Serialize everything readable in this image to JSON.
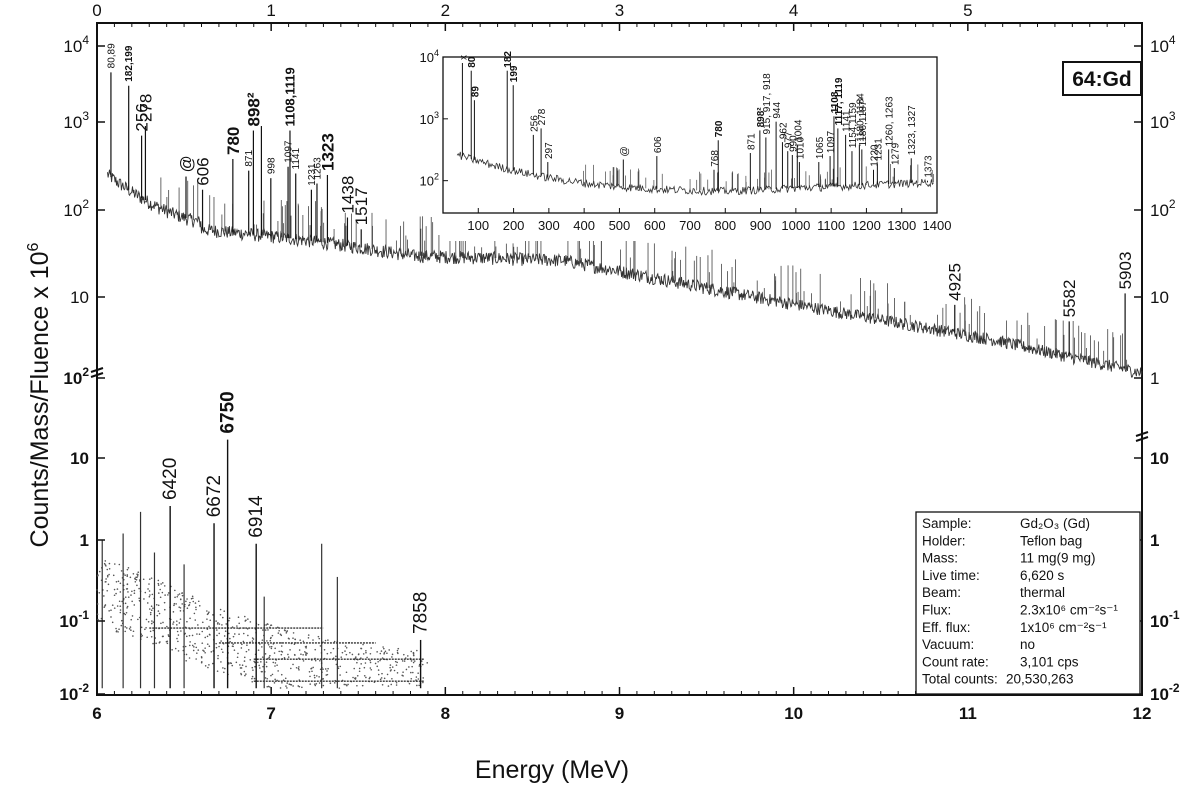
{
  "chart_data": {
    "type": "line",
    "element_tag": "64:Gd",
    "xlabel": "Energy (MeV)",
    "ylabel": "Counts/Mass/Fluence x 10",
    "ylabel_exponent": "6",
    "top_axis": {
      "range_mev": [
        0,
        6
      ],
      "ticks": [
        "0",
        "1",
        "2",
        "3",
        "4",
        "5"
      ]
    },
    "bottom_axis": {
      "range_mev": [
        6,
        12
      ],
      "ticks": [
        "6",
        "7",
        "8",
        "9",
        "10",
        "11",
        "12"
      ]
    },
    "upper_panel": {
      "energy_range_kev": [
        0,
        6000
      ],
      "y_log_range": [
        2.5,
        10000
      ],
      "ytick_labels_left": [
        {
          "base": "10",
          "exp": "4",
          "value": 10000
        },
        {
          "base": "10",
          "exp": "3",
          "value": 1000
        },
        {
          "base": "10",
          "exp": "2",
          "value": 100
        },
        {
          "base": "10",
          "exp": "",
          "value": 10
        }
      ],
      "ytick_labels_right": [
        {
          "base": "10",
          "exp": "4",
          "value": 10000
        },
        {
          "base": "10",
          "exp": "3",
          "value": 1000
        },
        {
          "base": "10",
          "exp": "2",
          "value": 100
        },
        {
          "base": "10",
          "exp": "",
          "value": 10
        },
        {
          "base": "1",
          "exp": "",
          "value": 1
        }
      ],
      "peaks": [
        {
          "e": 80,
          "h": 4500,
          "label": "80,89",
          "size": "tiny"
        },
        {
          "e": 182,
          "h": 3000,
          "label": "182,199",
          "size": "tiny",
          "bold": true
        },
        {
          "e": 256,
          "h": 700,
          "label": "256",
          "size": "med"
        },
        {
          "e": 278,
          "h": 900,
          "label": "278",
          "size": "med"
        },
        {
          "e": 511,
          "h": 240,
          "label": "@",
          "size": "med"
        },
        {
          "e": 606,
          "h": 170,
          "label": "606",
          "size": "med"
        },
        {
          "e": 780,
          "h": 380,
          "label": "780",
          "size": "med",
          "bold": true
        },
        {
          "e": 871,
          "h": 280,
          "label": "871",
          "size": "tiny"
        },
        {
          "e": 898,
          "h": 800,
          "label": "898²",
          "size": "med",
          "bold": true
        },
        {
          "e": 944,
          "h": 900,
          "label": "",
          "size": "none"
        },
        {
          "e": 998,
          "h": 230,
          "label": "998",
          "size": "tiny"
        },
        {
          "e": 1097,
          "h": 310,
          "label": "1097",
          "size": "tiny"
        },
        {
          "e": 1108,
          "h": 800,
          "label": "1108,1119",
          "size": "small",
          "bold": true
        },
        {
          "e": 1141,
          "h": 260,
          "label": "1141",
          "size": "tiny"
        },
        {
          "e": 1231,
          "h": 170,
          "label": "1231",
          "size": "tiny"
        },
        {
          "e": 1263,
          "h": 200,
          "label": "1263",
          "size": "tiny"
        },
        {
          "e": 1323,
          "h": 250,
          "label": "1323",
          "size": "med",
          "bold": true
        },
        {
          "e": 1438,
          "h": 82,
          "label": "1438",
          "size": "med"
        },
        {
          "e": 1517,
          "h": 60,
          "label": "1517",
          "size": "med"
        },
        {
          "e": 4925,
          "h": 8,
          "label": "4925",
          "size": "med"
        },
        {
          "e": 5582,
          "h": 5,
          "label": "5582",
          "size": "med"
        },
        {
          "e": 5903,
          "h": 11,
          "label": "5903",
          "size": "med"
        }
      ]
    },
    "lower_panel": {
      "energy_range_kev": [
        6000,
        8000
      ],
      "y_log_range": [
        0.01,
        100
      ],
      "ytick_labels_left": [
        {
          "base": "10",
          "exp": "2",
          "value": 100
        },
        {
          "base": "10",
          "exp": "",
          "value": 10
        },
        {
          "base": "1",
          "exp": "",
          "value": 1
        },
        {
          "base": "10",
          "exp": "-1",
          "value": 0.1
        },
        {
          "base": "10",
          "exp": "-2",
          "value": 0.01
        }
      ],
      "ytick_labels_right": [
        {
          "base": "10",
          "exp": "",
          "value": 10
        },
        {
          "base": "1",
          "exp": "",
          "value": 1
        },
        {
          "base": "10",
          "exp": "-1",
          "value": 0.1
        },
        {
          "base": "10",
          "exp": "-2",
          "value": 0.01
        }
      ],
      "peaks": [
        {
          "e": 6420,
          "h": 2.6,
          "label": "6420",
          "bold": false
        },
        {
          "e": 6672,
          "h": 1.6,
          "label": "6672",
          "bold": false
        },
        {
          "e": 6750,
          "h": 17,
          "label": "6750",
          "bold": true
        },
        {
          "e": 6914,
          "h": 0.9,
          "label": "6914",
          "bold": false
        },
        {
          "e": 7858,
          "h": 0.055,
          "label": "7858",
          "bold": false
        }
      ]
    },
    "inset": {
      "x_range_kev": [
        0,
        1400
      ],
      "y_log_range": [
        30,
        10000
      ],
      "xticks": [
        "100",
        "200",
        "300",
        "400",
        "500",
        "600",
        "700",
        "800",
        "900",
        "1000",
        "1100",
        "1200",
        "1300",
        "1400"
      ],
      "yticks": [
        {
          "base": "10",
          "exp": "4",
          "value": 10000
        },
        {
          "base": "10",
          "exp": "3",
          "value": 1000
        },
        {
          "base": "10",
          "exp": "2",
          "value": 100
        }
      ],
      "peaks": [
        {
          "e": 55,
          "h": 8000,
          "label": "x",
          "bold": false
        },
        {
          "e": 80,
          "h": 6000,
          "label": "80",
          "bold": true
        },
        {
          "e": 89,
          "h": 2000,
          "label": "89",
          "bold": true
        },
        {
          "e": 182,
          "h": 6000,
          "label": "182",
          "bold": true
        },
        {
          "e": 199,
          "h": 3500,
          "label": "199",
          "bold": true
        },
        {
          "e": 256,
          "h": 550,
          "label": "256",
          "bold": false
        },
        {
          "e": 278,
          "h": 700,
          "label": "278",
          "bold": false
        },
        {
          "e": 297,
          "h": 200,
          "label": "297",
          "bold": false
        },
        {
          "e": 511,
          "h": 220,
          "label": "@",
          "bold": false
        },
        {
          "e": 606,
          "h": 250,
          "label": "606",
          "bold": false
        },
        {
          "e": 768,
          "h": 150,
          "label": "768",
          "bold": false
        },
        {
          "e": 780,
          "h": 450,
          "label": "780",
          "bold": true
        },
        {
          "e": 871,
          "h": 280,
          "label": "871",
          "bold": false
        },
        {
          "e": 898,
          "h": 650,
          "label": "898²",
          "bold": true
        },
        {
          "e": 915,
          "h": 500,
          "label": "915, 917, 918",
          "bold": false
        },
        {
          "e": 944,
          "h": 900,
          "label": "944",
          "bold": false
        },
        {
          "e": 962,
          "h": 420,
          "label": "962",
          "bold": false
        },
        {
          "e": 977,
          "h": 300,
          "label": "977",
          "bold": false
        },
        {
          "e": 990,
          "h": 260,
          "label": "990",
          "bold": false
        },
        {
          "e": 1004,
          "h": 380,
          "label": "1004",
          "bold": false
        },
        {
          "e": 1010,
          "h": 200,
          "label": "1010",
          "bold": false
        },
        {
          "e": 1065,
          "h": 200,
          "label": "1065",
          "bold": false
        },
        {
          "e": 1097,
          "h": 250,
          "label": "1097",
          "bold": false
        },
        {
          "e": 1108,
          "h": 1100,
          "label": "1108",
          "bold": true
        },
        {
          "e": 1119,
          "h": 700,
          "label": "1117, 1119",
          "bold": true
        },
        {
          "e": 1141,
          "h": 550,
          "label": "1141",
          "bold": false
        },
        {
          "e": 1159,
          "h": 300,
          "label": "1154,1159",
          "bold": false
        },
        {
          "e": 1180,
          "h": 380,
          "label": "1180, 1184",
          "bold": false
        },
        {
          "e": 1187,
          "h": 320,
          "label": "1186,1187²",
          "bold": false
        },
        {
          "e": 1220,
          "h": 150,
          "label": "1220",
          "bold": false
        },
        {
          "e": 1231,
          "h": 190,
          "label": "1231",
          "bold": false
        },
        {
          "e": 1263,
          "h": 320,
          "label": "1260, 1263",
          "bold": false
        },
        {
          "e": 1279,
          "h": 160,
          "label": "1279",
          "bold": false
        },
        {
          "e": 1327,
          "h": 230,
          "label": "1323, 1327",
          "bold": false
        },
        {
          "e": 1373,
          "h": 100,
          "label": "1373",
          "bold": false
        }
      ]
    },
    "info_box": [
      {
        "key": "Sample:",
        "value": "Gd₂O₃ (Gd)"
      },
      {
        "key": "Holder:",
        "value": "Teflon bag"
      },
      {
        "key": "Mass:",
        "value": "11 mg(9 mg)"
      },
      {
        "key": "Live time:",
        "value": "6,620 s"
      },
      {
        "key": "Beam:",
        "value": "thermal"
      },
      {
        "key": "Flux:",
        "value": "2.3x10⁶ cm⁻²s⁻¹"
      },
      {
        "key": "Eff. flux:",
        "value": "1x10⁶ cm⁻²s⁻¹"
      },
      {
        "key": "Vacuum:",
        "value": "no"
      },
      {
        "key": "Count rate:",
        "value": "3,101 cps"
      },
      {
        "key": "Total counts:",
        "value": "20,530,263"
      }
    ],
    "grid": false,
    "legend": "none"
  }
}
